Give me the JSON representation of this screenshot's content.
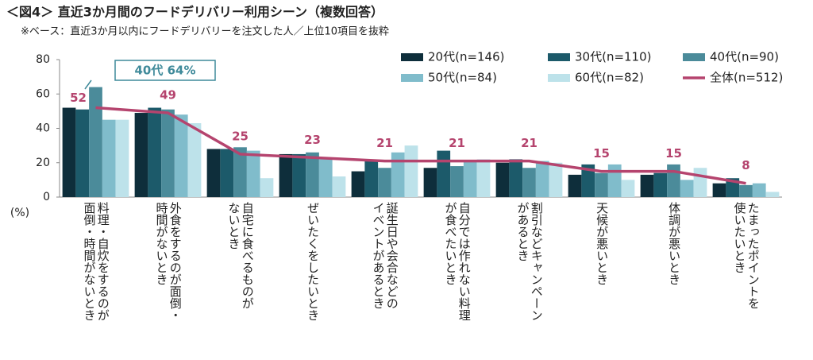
{
  "chart_data": {
    "type": "bar",
    "title": "＜図4＞ 直近3か月間のフードデリバリー利用シーン（複数回答）",
    "subtitle": "※ベース：直近3か月以内にフードデリバリーを注文した人／上位10項目を抜粋",
    "y_unit": "(%)",
    "annotation": "40代 64%",
    "categories": [
      "料理・自炊をするのが\n面倒・時間がないとき",
      "外食をするのが面倒・\n時間がないとき",
      "自宅に食べるものが\nないとき",
      "ぜいたくをしたいとき",
      "誕生日や会合などの\nイベントがあるとき",
      "自分では作れない料理\nが食べたいとき",
      "割引などキャンペーン\nがあるとき",
      "天候が悪いとき",
      "体調が悪いとき",
      "たまったポイントを\n使いたいとき"
    ],
    "series": [
      {
        "name": "20代(n=146)",
        "color": "#0e2e3b",
        "values": [
          52,
          49,
          28,
          25,
          15,
          17,
          20,
          13,
          13,
          8
        ]
      },
      {
        "name": "30代(n=110)",
        "color": "#1c5a6a",
        "values": [
          51,
          52,
          28,
          25,
          21,
          27,
          22,
          19,
          14,
          11
        ]
      },
      {
        "name": "40代(n=90)",
        "color": "#4b8b9a",
        "values": [
          64,
          51,
          29,
          26,
          17,
          18,
          17,
          14,
          19,
          7
        ]
      },
      {
        "name": "50代(n=84)",
        "color": "#80bccb",
        "values": [
          45,
          48,
          27,
          22,
          26,
          21,
          21,
          19,
          10,
          8
        ]
      },
      {
        "name": "60代(n=82)",
        "color": "#bde2ea",
        "values": [
          45,
          43,
          11,
          12,
          30,
          22,
          20,
          10,
          17,
          3
        ]
      },
      {
        "name": "全体(n=512)",
        "color": "#b5446e",
        "type": "line",
        "values": [
          52,
          49,
          25,
          23,
          21,
          21,
          21,
          15,
          15,
          8
        ]
      }
    ],
    "ylim": [
      0,
      80
    ],
    "yticks": [
      0,
      20,
      40,
      60,
      80
    ]
  }
}
